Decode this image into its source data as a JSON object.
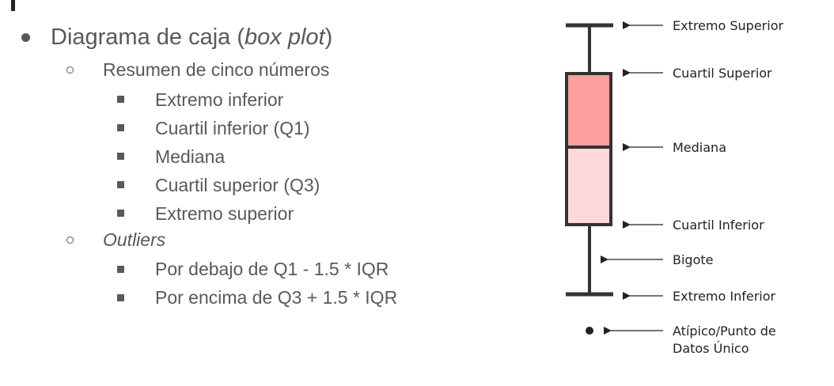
{
  "outline": {
    "title_prefix": "Diagrama de caja (",
    "title_italic": "box plot",
    "title_suffix": ")",
    "summary": "Resumen de cinco números",
    "summary_items": [
      "Extremo inferior",
      "Cuartil inferior (Q1)",
      "Mediana",
      "Cuartil superior (Q3)",
      "Extremo superior"
    ],
    "outliers": "Outliers",
    "outlier_items": [
      "Por debajo de Q1 - 1.5 * IQR",
      "Por encima de Q3 + 1.5 * IQR"
    ]
  },
  "diagram": {
    "labels": {
      "upper_extreme": "Extremo Superior",
      "upper_quartile": "Cuartil Superior",
      "median": "Mediana",
      "lower_quartile": "Cuartil Inferior",
      "whisker": "Bigote",
      "lower_extreme": "Extremo Inferior",
      "outlier_line1": "Atípico/Punto de",
      "outlier_line2": "Datos Único"
    },
    "colors": {
      "upper_box": "#FF9E9E",
      "lower_box": "#FFD9DA",
      "stroke": "#333333"
    }
  }
}
